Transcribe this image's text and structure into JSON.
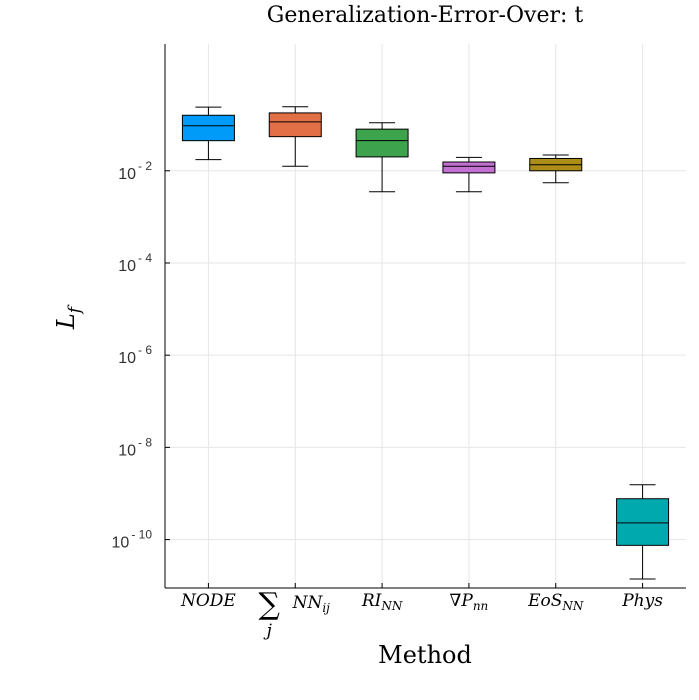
{
  "chart_data": {
    "type": "box",
    "title": "Generalization-Error-Over: t",
    "xlabel": "Method",
    "ylabel": "L_f",
    "yscale": "log",
    "ylim_exponent": [
      -11.05,
      0.75
    ],
    "grid": true,
    "yticks": [
      {
        "base": "10",
        "exp": "- 2",
        "value_exponent": -2
      },
      {
        "base": "10",
        "exp": "- 4",
        "value_exponent": -4
      },
      {
        "base": "10",
        "exp": "- 6",
        "value_exponent": -6
      },
      {
        "base": "10",
        "exp": "- 8",
        "value_exponent": -8
      },
      {
        "base": "10",
        "exp": "- 10",
        "value_exponent": -10
      }
    ],
    "categories": [
      {
        "main": "NODE",
        "sub": "",
        "prefix": "",
        "under": ""
      },
      {
        "main": "NN",
        "sub": "ij",
        "prefix": "∑",
        "under": "j"
      },
      {
        "main": "RI",
        "sub": "NN",
        "prefix": "",
        "under": ""
      },
      {
        "main": "∇P",
        "sub": "nn",
        "prefix": "",
        "under": ""
      },
      {
        "main": "EoS",
        "sub": "NN",
        "prefix": "",
        "under": ""
      },
      {
        "main": "Phys",
        "sub": "",
        "prefix": "",
        "under": ""
      }
    ],
    "series": [
      {
        "color": "#009af9",
        "whisker_low": 0.0175,
        "q1": 0.045,
        "median": 0.095,
        "q3": 0.16,
        "whisker_high": 0.24
      },
      {
        "color": "#e26f46",
        "whisker_low": 0.0125,
        "q1": 0.055,
        "median": 0.115,
        "q3": 0.18,
        "whisker_high": 0.245
      },
      {
        "color": "#3da44d",
        "whisker_low": 0.0035,
        "q1": 0.02,
        "median": 0.045,
        "q3": 0.08,
        "whisker_high": 0.11
      },
      {
        "color": "#c271d2",
        "whisker_low": 0.0035,
        "q1": 0.009,
        "median": 0.0125,
        "q3": 0.0155,
        "whisker_high": 0.0195
      },
      {
        "color": "#ac8d18",
        "whisker_low": 0.0055,
        "q1": 0.01,
        "median": 0.0135,
        "q3": 0.0185,
        "whisker_high": 0.022
      },
      {
        "color": "#00a9ad",
        "whisker_low": 1.4e-11,
        "q1": 7.5e-11,
        "median": 2.3e-10,
        "q3": 7.7e-10,
        "whisker_high": 1.55e-09
      }
    ]
  }
}
